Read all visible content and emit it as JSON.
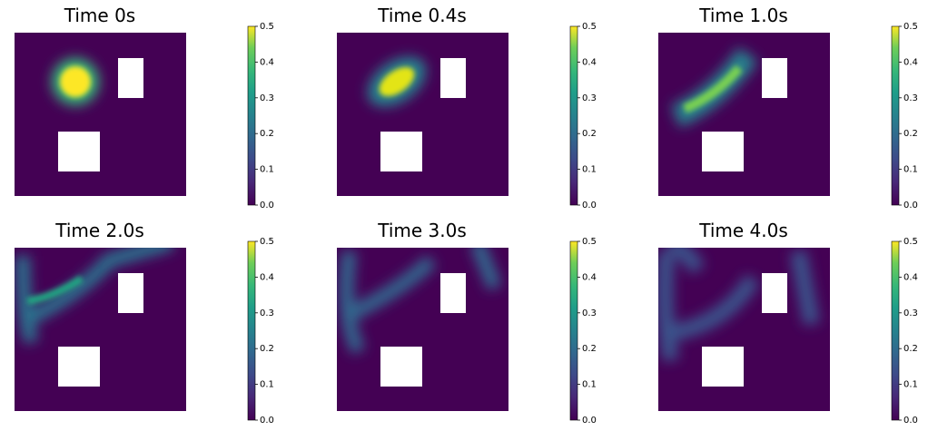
{
  "chart_data": [
    {
      "type": "heatmap",
      "title": "Time 0s",
      "colormap": "viridis",
      "clim": [
        0,
        0.5
      ],
      "cticks": [
        {
          "value": 0,
          "label": "0.0"
        },
        0.1,
        0.2,
        0.3,
        0.4,
        0.5
      ]
    },
    {
      "type": "heatmap",
      "title": "Time 0.4s",
      "colormap": "viridis",
      "clim": [
        0,
        0.5
      ],
      "cticks": [
        {
          "value": 0,
          "label": "0.0"
        },
        0.1,
        0.2,
        0.3,
        0.4,
        0.5
      ]
    },
    {
      "type": "heatmap",
      "title": "Time 1.0s",
      "colormap": "viridis",
      "clim": [
        0,
        0.5
      ],
      "cticks": [
        {
          "value": 0,
          "label": "0.0"
        },
        0.1,
        0.2,
        0.3,
        0.4,
        0.5
      ]
    },
    {
      "type": "heatmap",
      "title": "Time 2.0s",
      "colormap": "viridis",
      "clim": [
        0,
        0.5
      ],
      "cticks": [
        {
          "value": 0,
          "label": "0.0"
        },
        0.1,
        0.2,
        0.3,
        0.4,
        0.5
      ]
    },
    {
      "type": "heatmap",
      "title": "Time 3.0s",
      "colormap": "viridis",
      "clim": [
        0,
        0.5
      ],
      "cticks": [
        {
          "value": 0,
          "label": "0.0"
        },
        0.1,
        0.2,
        0.3,
        0.4,
        0.5
      ]
    },
    {
      "type": "heatmap",
      "title": "Time 4.0s",
      "colormap": "viridis",
      "clim": [
        0,
        0.5
      ],
      "cticks": [
        {
          "value": 0,
          "label": "0.0"
        },
        0.1,
        0.2,
        0.3,
        0.4,
        0.5
      ]
    }
  ]
}
